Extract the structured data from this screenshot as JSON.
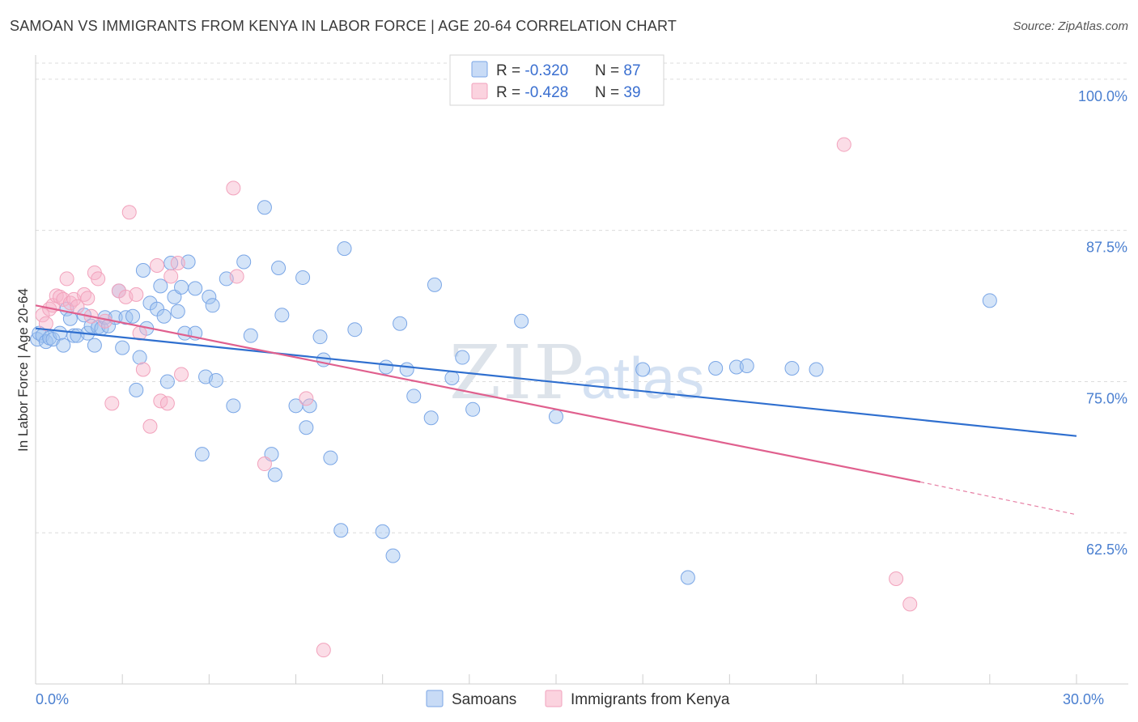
{
  "title": "SAMOAN VS IMMIGRANTS FROM KENYA IN LABOR FORCE | AGE 20-64 CORRELATION CHART",
  "source": "Source: ZipAtlas.com",
  "watermark": {
    "zip": "ZIP",
    "atlas": "atlas"
  },
  "chart_data": {
    "type": "scatter",
    "ylabel": "In Labor Force | Age 20-64",
    "xlim": [
      0,
      30
    ],
    "ylim": [
      50,
      102
    ],
    "x_tick_labels": [
      {
        "x": 0,
        "label": "0.0%"
      },
      {
        "x": 30,
        "label": "30.0%"
      }
    ],
    "y_ticks": [
      {
        "y": 100,
        "label": "100.0%"
      },
      {
        "y": 87.5,
        "label": "87.5%"
      },
      {
        "y": 75,
        "label": "75.0%"
      },
      {
        "y": 62.5,
        "label": "62.5%"
      }
    ],
    "legend": [
      {
        "r_label": "R = ",
        "r": "-0.320",
        "n_label": "N = ",
        "n": "87",
        "color": "#7aa6e6"
      },
      {
        "r_label": "R = ",
        "r": "-0.428",
        "n_label": "N = ",
        "n": "39",
        "color": "#f2a2bc"
      }
    ],
    "series": [
      {
        "name": "Samoans",
        "color": "#7aa6e6",
        "line_color": "#2f6fcf",
        "trend": {
          "x0": 0,
          "y0": 79.4,
          "x1": 30,
          "y1": 70.5
        },
        "points": [
          [
            0.05,
            78.5
          ],
          [
            0.1,
            79.0
          ],
          [
            0.2,
            78.8
          ],
          [
            0.3,
            78.3
          ],
          [
            0.4,
            78.6
          ],
          [
            0.5,
            78.5
          ],
          [
            0.7,
            79.0
          ],
          [
            0.8,
            78.0
          ],
          [
            0.9,
            81.0
          ],
          [
            1.0,
            80.2
          ],
          [
            1.1,
            78.8
          ],
          [
            1.2,
            78.8
          ],
          [
            1.4,
            80.5
          ],
          [
            1.5,
            79.0
          ],
          [
            1.6,
            79.6
          ],
          [
            1.7,
            78.0
          ],
          [
            1.8,
            79.5
          ],
          [
            1.9,
            79.4
          ],
          [
            2.0,
            80.3
          ],
          [
            2.1,
            79.6
          ],
          [
            2.3,
            80.3
          ],
          [
            2.4,
            82.5
          ],
          [
            2.5,
            77.8
          ],
          [
            2.6,
            80.3
          ],
          [
            2.8,
            80.4
          ],
          [
            2.9,
            74.3
          ],
          [
            3.0,
            77.0
          ],
          [
            3.1,
            84.2
          ],
          [
            3.2,
            79.4
          ],
          [
            3.3,
            81.5
          ],
          [
            3.5,
            81.0
          ],
          [
            3.6,
            82.9
          ],
          [
            3.7,
            80.4
          ],
          [
            3.8,
            75.0
          ],
          [
            3.9,
            84.8
          ],
          [
            4.0,
            82.0
          ],
          [
            4.1,
            80.8
          ],
          [
            4.2,
            82.8
          ],
          [
            4.3,
            79.0
          ],
          [
            4.4,
            84.9
          ],
          [
            4.6,
            82.7
          ],
          [
            4.6,
            79.0
          ],
          [
            4.8,
            69.0
          ],
          [
            4.9,
            75.4
          ],
          [
            5.0,
            82.0
          ],
          [
            5.1,
            81.3
          ],
          [
            5.2,
            75.1
          ],
          [
            5.5,
            83.5
          ],
          [
            5.7,
            73.0
          ],
          [
            6.0,
            84.9
          ],
          [
            6.2,
            78.8
          ],
          [
            6.6,
            89.4
          ],
          [
            6.8,
            69.0
          ],
          [
            6.9,
            67.3
          ],
          [
            7.0,
            84.4
          ],
          [
            7.1,
            80.5
          ],
          [
            7.5,
            73.0
          ],
          [
            7.7,
            83.6
          ],
          [
            7.8,
            71.2
          ],
          [
            7.9,
            73.0
          ],
          [
            8.2,
            78.7
          ],
          [
            8.3,
            76.8
          ],
          [
            8.5,
            68.7
          ],
          [
            8.8,
            62.7
          ],
          [
            8.9,
            86.0
          ],
          [
            9.2,
            79.3
          ],
          [
            10.0,
            62.6
          ],
          [
            10.1,
            76.2
          ],
          [
            10.3,
            60.6
          ],
          [
            10.5,
            79.8
          ],
          [
            10.7,
            76.0
          ],
          [
            10.9,
            73.8
          ],
          [
            11.4,
            72.0
          ],
          [
            11.5,
            83.0
          ],
          [
            12.0,
            75.3
          ],
          [
            12.3,
            77.0
          ],
          [
            12.6,
            72.7
          ],
          [
            14.0,
            80.0
          ],
          [
            15.0,
            72.1
          ],
          [
            17.5,
            76.0
          ],
          [
            18.8,
            58.8
          ],
          [
            19.6,
            76.1
          ],
          [
            20.2,
            76.2
          ],
          [
            20.5,
            76.3
          ],
          [
            21.8,
            76.1
          ],
          [
            22.5,
            76.0
          ],
          [
            27.5,
            81.7
          ]
        ]
      },
      {
        "name": "Immigrants from Kenya",
        "color": "#f2a2bc",
        "line_color": "#e0608e",
        "trend": {
          "x0": 0,
          "y0": 81.3,
          "x1": 25.5,
          "y1": 66.7
        },
        "trend_dashed": {
          "x0": 25.5,
          "y0": 66.7,
          "x1": 30,
          "y1": 64.0
        },
        "points": [
          [
            0.2,
            80.5
          ],
          [
            0.3,
            79.8
          ],
          [
            0.4,
            81.0
          ],
          [
            0.5,
            81.3
          ],
          [
            0.6,
            82.1
          ],
          [
            0.7,
            82.0
          ],
          [
            0.8,
            81.8
          ],
          [
            0.9,
            83.5
          ],
          [
            1.0,
            81.5
          ],
          [
            1.1,
            81.8
          ],
          [
            1.2,
            81.2
          ],
          [
            1.4,
            82.2
          ],
          [
            1.5,
            81.9
          ],
          [
            1.6,
            80.4
          ],
          [
            1.7,
            84.0
          ],
          [
            1.8,
            83.5
          ],
          [
            2.0,
            80.0
          ],
          [
            2.2,
            73.2
          ],
          [
            2.4,
            82.5
          ],
          [
            2.6,
            82.0
          ],
          [
            2.7,
            89.0
          ],
          [
            2.9,
            82.2
          ],
          [
            3.0,
            79.0
          ],
          [
            3.1,
            76.0
          ],
          [
            3.3,
            71.3
          ],
          [
            3.5,
            84.6
          ],
          [
            3.6,
            73.4
          ],
          [
            3.8,
            73.2
          ],
          [
            3.9,
            83.7
          ],
          [
            4.1,
            84.8
          ],
          [
            4.2,
            75.6
          ],
          [
            5.7,
            91.0
          ],
          [
            5.8,
            83.7
          ],
          [
            6.6,
            68.2
          ],
          [
            7.8,
            73.6
          ],
          [
            8.3,
            52.8
          ],
          [
            23.3,
            94.6
          ],
          [
            24.8,
            58.7
          ],
          [
            25.2,
            56.6
          ]
        ]
      }
    ]
  }
}
